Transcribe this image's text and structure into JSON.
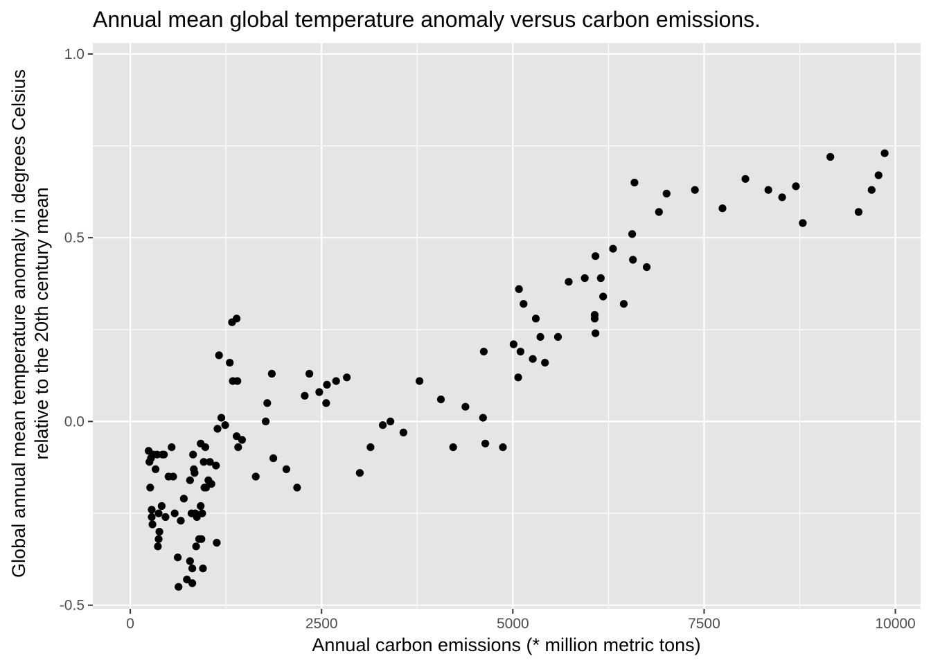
{
  "chart_data": {
    "type": "scatter",
    "title": "Annual mean global temperature anomaly versus carbon emissions.",
    "xlabel": "Annual carbon emissions (* million metric tons)",
    "ylabel_lines": [
      "Global annual mean temperature anomaly in degrees Celsius",
      "relative to the 20th century mean"
    ],
    "xlim": [
      -490,
      10330
    ],
    "ylim": [
      -0.51,
      1.03
    ],
    "x_ticks": [
      0,
      2500,
      5000,
      7500,
      10000
    ],
    "x_tick_labels": [
      "0",
      "2500",
      "5000",
      "7500",
      "10000"
    ],
    "y_ticks": [
      -0.5,
      0.0,
      0.5,
      1.0
    ],
    "y_tick_labels": [
      "-0.5",
      "0.0",
      "0.5",
      "1.0"
    ],
    "grid": true,
    "panel_color": "#e5e5e5",
    "grid_color": "#ffffff",
    "point_color": "#000000",
    "points": [
      {
        "x": 240,
        "y": -0.08
      },
      {
        "x": 250,
        "y": -0.11
      },
      {
        "x": 270,
        "y": -0.1
      },
      {
        "x": 260,
        "y": -0.18
      },
      {
        "x": 280,
        "y": -0.24
      },
      {
        "x": 280,
        "y": -0.26
      },
      {
        "x": 290,
        "y": -0.28
      },
      {
        "x": 300,
        "y": -0.09
      },
      {
        "x": 330,
        "y": -0.13
      },
      {
        "x": 350,
        "y": -0.09
      },
      {
        "x": 360,
        "y": -0.34
      },
      {
        "x": 370,
        "y": -0.32
      },
      {
        "x": 380,
        "y": -0.3
      },
      {
        "x": 370,
        "y": -0.25
      },
      {
        "x": 410,
        "y": -0.23
      },
      {
        "x": 420,
        "y": -0.09
      },
      {
        "x": 440,
        "y": -0.09
      },
      {
        "x": 460,
        "y": -0.26
      },
      {
        "x": 500,
        "y": -0.15
      },
      {
        "x": 540,
        "y": -0.07
      },
      {
        "x": 560,
        "y": -0.15
      },
      {
        "x": 580,
        "y": -0.25
      },
      {
        "x": 620,
        "y": -0.37
      },
      {
        "x": 630,
        "y": -0.45
      },
      {
        "x": 660,
        "y": -0.27
      },
      {
        "x": 700,
        "y": -0.21
      },
      {
        "x": 740,
        "y": -0.43
      },
      {
        "x": 780,
        "y": -0.38
      },
      {
        "x": 780,
        "y": -0.16
      },
      {
        "x": 800,
        "y": -0.25
      },
      {
        "x": 810,
        "y": -0.44
      },
      {
        "x": 810,
        "y": -0.4
      },
      {
        "x": 820,
        "y": -0.09
      },
      {
        "x": 830,
        "y": -0.13
      },
      {
        "x": 840,
        "y": -0.14
      },
      {
        "x": 850,
        "y": -0.25
      },
      {
        "x": 860,
        "y": -0.34
      },
      {
        "x": 870,
        "y": -0.26
      },
      {
        "x": 900,
        "y": -0.32
      },
      {
        "x": 920,
        "y": -0.23
      },
      {
        "x": 920,
        "y": -0.06
      },
      {
        "x": 930,
        "y": -0.32
      },
      {
        "x": 940,
        "y": -0.25
      },
      {
        "x": 950,
        "y": -0.4
      },
      {
        "x": 960,
        "y": -0.11
      },
      {
        "x": 970,
        "y": -0.18
      },
      {
        "x": 980,
        "y": -0.07
      },
      {
        "x": 990,
        "y": -0.18
      },
      {
        "x": 1020,
        "y": -0.16
      },
      {
        "x": 1040,
        "y": -0.11
      },
      {
        "x": 1060,
        "y": -0.17
      },
      {
        "x": 1120,
        "y": -0.12
      },
      {
        "x": 1130,
        "y": -0.33
      },
      {
        "x": 1140,
        "y": -0.02
      },
      {
        "x": 1160,
        "y": 0.18
      },
      {
        "x": 1190,
        "y": 0.01
      },
      {
        "x": 1240,
        "y": -0.01
      },
      {
        "x": 1300,
        "y": 0.16
      },
      {
        "x": 1330,
        "y": 0.27
      },
      {
        "x": 1340,
        "y": 0.11
      },
      {
        "x": 1390,
        "y": 0.28
      },
      {
        "x": 1390,
        "y": -0.04
      },
      {
        "x": 1400,
        "y": 0.11
      },
      {
        "x": 1410,
        "y": -0.07
      },
      {
        "x": 1460,
        "y": -0.05
      },
      {
        "x": 1640,
        "y": -0.15
      },
      {
        "x": 1770,
        "y": 0.0
      },
      {
        "x": 1790,
        "y": 0.05
      },
      {
        "x": 1850,
        "y": 0.13
      },
      {
        "x": 1870,
        "y": -0.1
      },
      {
        "x": 2040,
        "y": -0.13
      },
      {
        "x": 2180,
        "y": -0.18
      },
      {
        "x": 2280,
        "y": 0.07
      },
      {
        "x": 2340,
        "y": 0.13
      },
      {
        "x": 2470,
        "y": 0.08
      },
      {
        "x": 2560,
        "y": 0.05
      },
      {
        "x": 2570,
        "y": 0.1
      },
      {
        "x": 2690,
        "y": 0.11
      },
      {
        "x": 2830,
        "y": 0.12
      },
      {
        "x": 3000,
        "y": -0.14
      },
      {
        "x": 3140,
        "y": -0.07
      },
      {
        "x": 3300,
        "y": -0.01
      },
      {
        "x": 3400,
        "y": 0.0
      },
      {
        "x": 3570,
        "y": -0.03
      },
      {
        "x": 3780,
        "y": 0.11
      },
      {
        "x": 4060,
        "y": 0.06
      },
      {
        "x": 4220,
        "y": -0.07
      },
      {
        "x": 4380,
        "y": 0.04
      },
      {
        "x": 4610,
        "y": 0.01
      },
      {
        "x": 4620,
        "y": 0.19
      },
      {
        "x": 4640,
        "y": -0.06
      },
      {
        "x": 4870,
        "y": -0.07
      },
      {
        "x": 5010,
        "y": 0.21
      },
      {
        "x": 5070,
        "y": 0.12
      },
      {
        "x": 5080,
        "y": 0.36
      },
      {
        "x": 5100,
        "y": 0.19
      },
      {
        "x": 5140,
        "y": 0.32
      },
      {
        "x": 5260,
        "y": 0.17
      },
      {
        "x": 5300,
        "y": 0.28
      },
      {
        "x": 5360,
        "y": 0.23
      },
      {
        "x": 5420,
        "y": 0.16
      },
      {
        "x": 5590,
        "y": 0.23
      },
      {
        "x": 5730,
        "y": 0.38
      },
      {
        "x": 5940,
        "y": 0.39
      },
      {
        "x": 6070,
        "y": 0.29
      },
      {
        "x": 6070,
        "y": 0.28
      },
      {
        "x": 6080,
        "y": 0.24
      },
      {
        "x": 6080,
        "y": 0.45
      },
      {
        "x": 6150,
        "y": 0.39
      },
      {
        "x": 6180,
        "y": 0.34
      },
      {
        "x": 6310,
        "y": 0.47
      },
      {
        "x": 6450,
        "y": 0.32
      },
      {
        "x": 6560,
        "y": 0.51
      },
      {
        "x": 6570,
        "y": 0.44
      },
      {
        "x": 6590,
        "y": 0.65
      },
      {
        "x": 6750,
        "y": 0.42
      },
      {
        "x": 6910,
        "y": 0.57
      },
      {
        "x": 7010,
        "y": 0.62
      },
      {
        "x": 7380,
        "y": 0.63
      },
      {
        "x": 7740,
        "y": 0.58
      },
      {
        "x": 8040,
        "y": 0.66
      },
      {
        "x": 8340,
        "y": 0.63
      },
      {
        "x": 8520,
        "y": 0.61
      },
      {
        "x": 8700,
        "y": 0.64
      },
      {
        "x": 8790,
        "y": 0.54
      },
      {
        "x": 9150,
        "y": 0.72
      },
      {
        "x": 9520,
        "y": 0.57
      },
      {
        "x": 9690,
        "y": 0.63
      },
      {
        "x": 9780,
        "y": 0.67
      },
      {
        "x": 9860,
        "y": 0.73
      }
    ]
  }
}
